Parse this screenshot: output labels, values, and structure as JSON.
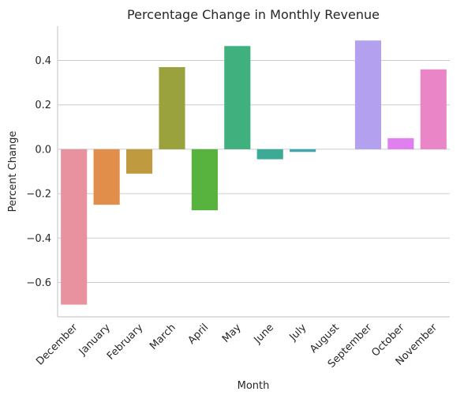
{
  "chart_data": {
    "type": "bar",
    "title": "Percentage Change in Monthly Revenue",
    "xlabel": "Month",
    "ylabel": "Percent Change",
    "categories": [
      "December",
      "January",
      "February",
      "March",
      "April",
      "May",
      "June",
      "July",
      "August",
      "September",
      "October",
      "November"
    ],
    "values": [
      -0.7,
      -0.25,
      -0.11,
      0.37,
      -0.275,
      0.465,
      -0.045,
      -0.012,
      0.0,
      0.49,
      0.05,
      0.36
    ],
    "colors": [
      "#e8919f",
      "#e08e4a",
      "#bf9a3f",
      "#9aa23e",
      "#58b33e",
      "#3fb07e",
      "#3daa98",
      "#3fa6ab",
      "#48a0cf",
      "#b3a0ef",
      "#e07fef",
      "#ea86c8"
    ],
    "yticks": [
      "−0.6",
      "−0.4",
      "−0.2",
      "0.0",
      "0.2",
      "0.4"
    ],
    "ytick_values": [
      -0.6,
      -0.4,
      -0.2,
      0.0,
      0.2,
      0.4
    ],
    "ylim": [
      -0.755,
      0.555
    ],
    "grid": true
  }
}
